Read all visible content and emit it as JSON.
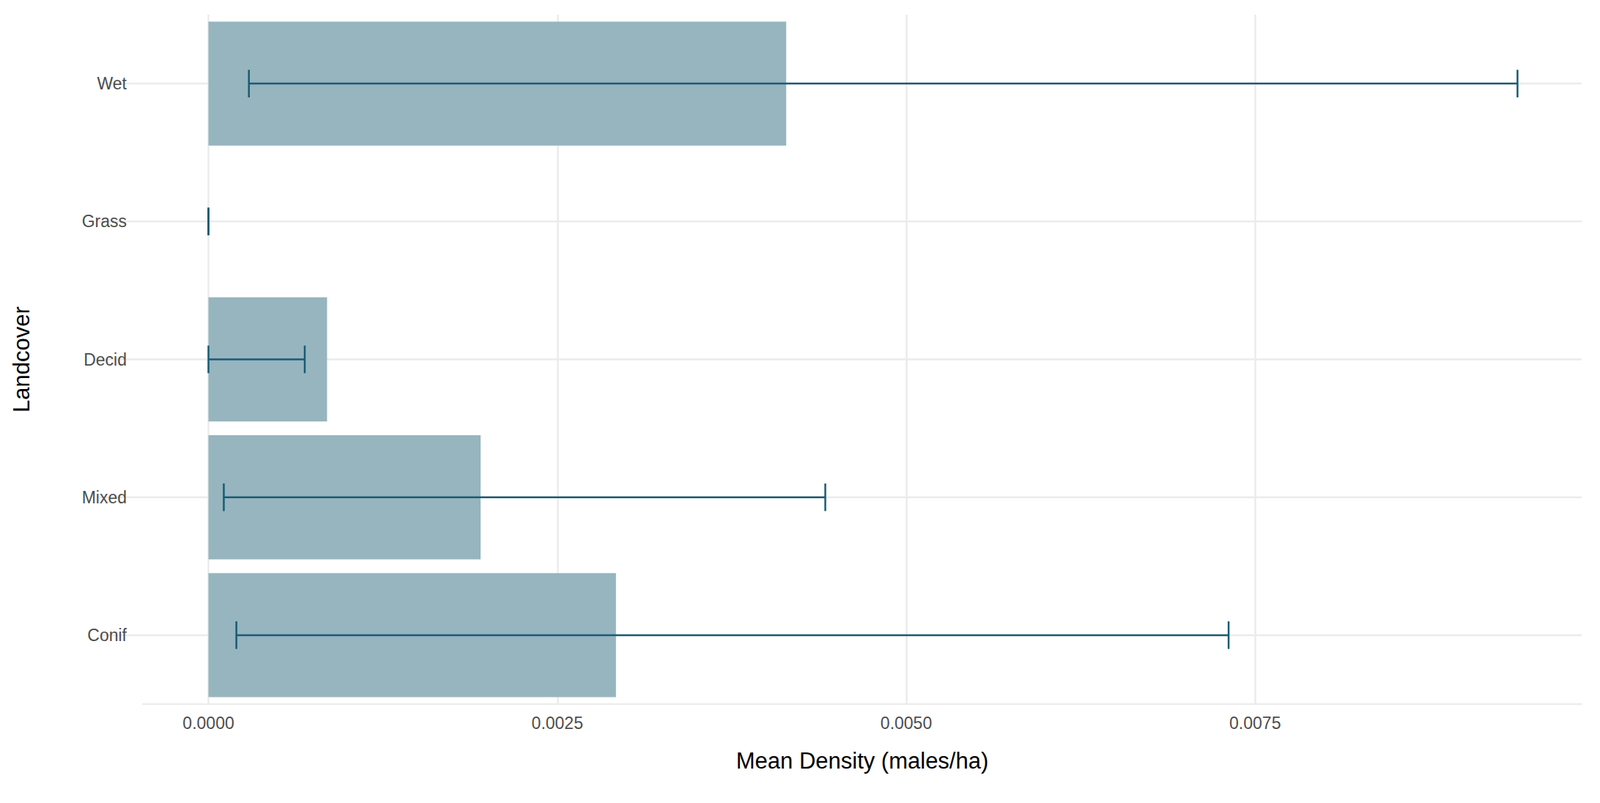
{
  "chart_data": {
    "type": "bar",
    "orientation": "horizontal",
    "x_label": "Mean Density (males/ha)",
    "y_label": "Landcover",
    "categories": [
      "Conif",
      "Mixed",
      "Decid",
      "Grass",
      "Wet"
    ],
    "values": [
      0.00292,
      0.00195,
      0.00085,
      0,
      0.00414
    ],
    "error_low": [
      0.0002,
      0.00011,
      0,
      0,
      0.00029
    ],
    "error_high": [
      0.00731,
      0.00442,
      0.00069,
      0,
      0.00938
    ],
    "color": "#96b5bf",
    "xlim": [
      -0.00047,
      0.00984
    ],
    "xticks": [
      {
        "value": 0,
        "label": "0.0000"
      },
      {
        "value": 0.0025,
        "label": "0.0025"
      },
      {
        "value": 0.005,
        "label": "0.0050"
      },
      {
        "value": 0.0075,
        "label": "0.0075"
      }
    ],
    "grid": true
  }
}
